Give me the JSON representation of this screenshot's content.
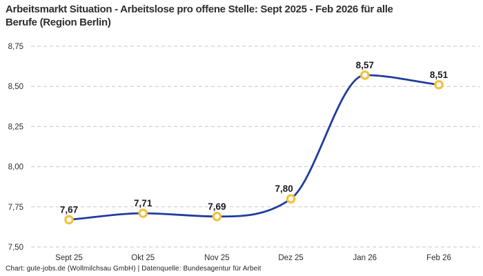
{
  "title": {
    "line1": "Arbeitsmarkt Situation - Arbeitslose pro offene Stelle: Sept 2025 - Feb 2026 für alle",
    "line2": "Berufe (Region Berlin)"
  },
  "attribution": "Chart: gute-jobs.de (Wollmilchsau GmbH) | Datenquelle: Bundesagentur für Arbeit",
  "colors": {
    "line": "#1f3b9e",
    "marker_ring": "#f2c13e",
    "marker_fill": "#ffffff",
    "grid": "#c6c6c6",
    "title_text": "#2e2e2e",
    "data_label_text": "#1a1a24",
    "axis_text": "#2b2b2b"
  },
  "chart_data": {
    "type": "line",
    "title": "Arbeitsmarkt Situation - Arbeitslose pro offene Stelle: Sept 2025 - Feb 2026 für alle Berufe (Region Berlin)",
    "categories": [
      "Sept 25",
      "Okt 25",
      "Nov 25",
      "Dez 25",
      "Jan 26",
      "Feb 26"
    ],
    "values": [
      7.67,
      7.71,
      7.69,
      7.8,
      8.57,
      8.51
    ],
    "value_labels": [
      "7,67",
      "7,71",
      "7,69",
      "7,80",
      "8,57",
      "8,51"
    ],
    "yticks": [
      7.5,
      7.75,
      8.0,
      8.25,
      8.5,
      8.75
    ],
    "ytick_labels": [
      "7,50",
      "7,75",
      "8,00",
      "8,25",
      "8,50",
      "8,75"
    ],
    "ylim": [
      7.5,
      8.75
    ],
    "xlabel": "",
    "ylabel": "",
    "grid": "dashed-horizontal",
    "legend": "none"
  }
}
